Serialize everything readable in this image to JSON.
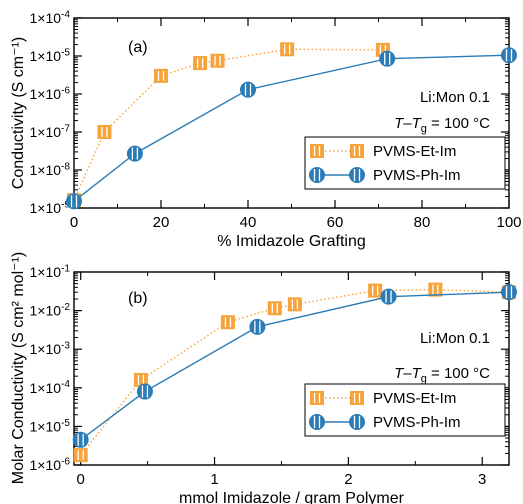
{
  "colors": {
    "series_orange": "#f5a33a",
    "series_blue": "#2a7bb6",
    "axis": "#000000"
  },
  "chart_data": [
    {
      "type": "line",
      "panel_label": "(a)",
      "xlabel": "% Imidazole Grafting",
      "ylabel": "Conductivity (S cm⁻¹)",
      "xlim": [
        0,
        100
      ],
      "ylim_log10": [
        -9,
        -4
      ],
      "yscale": "log",
      "xticks": [
        0,
        20,
        40,
        60,
        80,
        100
      ],
      "yticks": [
        -9,
        -8,
        -7,
        -6,
        -5,
        -4
      ],
      "annotations": [
        "Li:Mon 0.1",
        "T–T_g = 100 °C"
      ],
      "legend_position": "lower-right",
      "series": [
        {
          "name": "PVMS-Et-Im",
          "color": "#f5a33a",
          "line_style": "dotted",
          "marker": "square",
          "x": [
            0,
            7,
            20,
            29,
            33,
            49,
            71
          ],
          "y": [
            1.6e-09,
            1e-07,
            3e-06,
            6.5e-06,
            7.5e-06,
            1.5e-05,
            1.45e-05
          ]
        },
        {
          "name": "PVMS-Ph-Im",
          "color": "#2a7bb6",
          "line_style": "solid",
          "marker": "circle",
          "x": [
            0,
            14,
            40,
            72,
            100
          ],
          "y": [
            1.5e-09,
            2.7e-08,
            1.3e-06,
            8.5e-06,
            1.05e-05
          ]
        }
      ]
    },
    {
      "type": "line",
      "panel_label": "(b)",
      "xlabel": "mmol Imidazole / gram Polymer",
      "ylabel": "Molar Conductivity (S cm² mol⁻¹)",
      "xlim": [
        -0.05,
        3.2
      ],
      "ylim_log10": [
        -6,
        -1
      ],
      "yscale": "log",
      "xticks": [
        0,
        1,
        2,
        3
      ],
      "yticks": [
        -6,
        -5,
        -4,
        -3,
        -2,
        -1
      ],
      "annotations": [
        "Li:Mon 0.1",
        "T–T_g = 100 °C"
      ],
      "legend_position": "lower-right",
      "series": [
        {
          "name": "PVMS-Et-Im",
          "color": "#f5a33a",
          "line_style": "dotted",
          "marker": "square",
          "x": [
            0,
            0.45,
            1.1,
            1.45,
            1.6,
            2.2,
            2.65,
            3.2
          ],
          "y": [
            1.8e-06,
            0.00016,
            0.005,
            0.0115,
            0.0145,
            0.033,
            0.035,
            0.03
          ]
        },
        {
          "name": "PVMS-Ph-Im",
          "color": "#2a7bb6",
          "line_style": "solid",
          "marker": "circle",
          "x": [
            0,
            0.48,
            1.32,
            2.3,
            3.2
          ],
          "y": [
            4.5e-06,
            8e-05,
            0.0038,
            0.023,
            0.03
          ]
        }
      ]
    }
  ]
}
